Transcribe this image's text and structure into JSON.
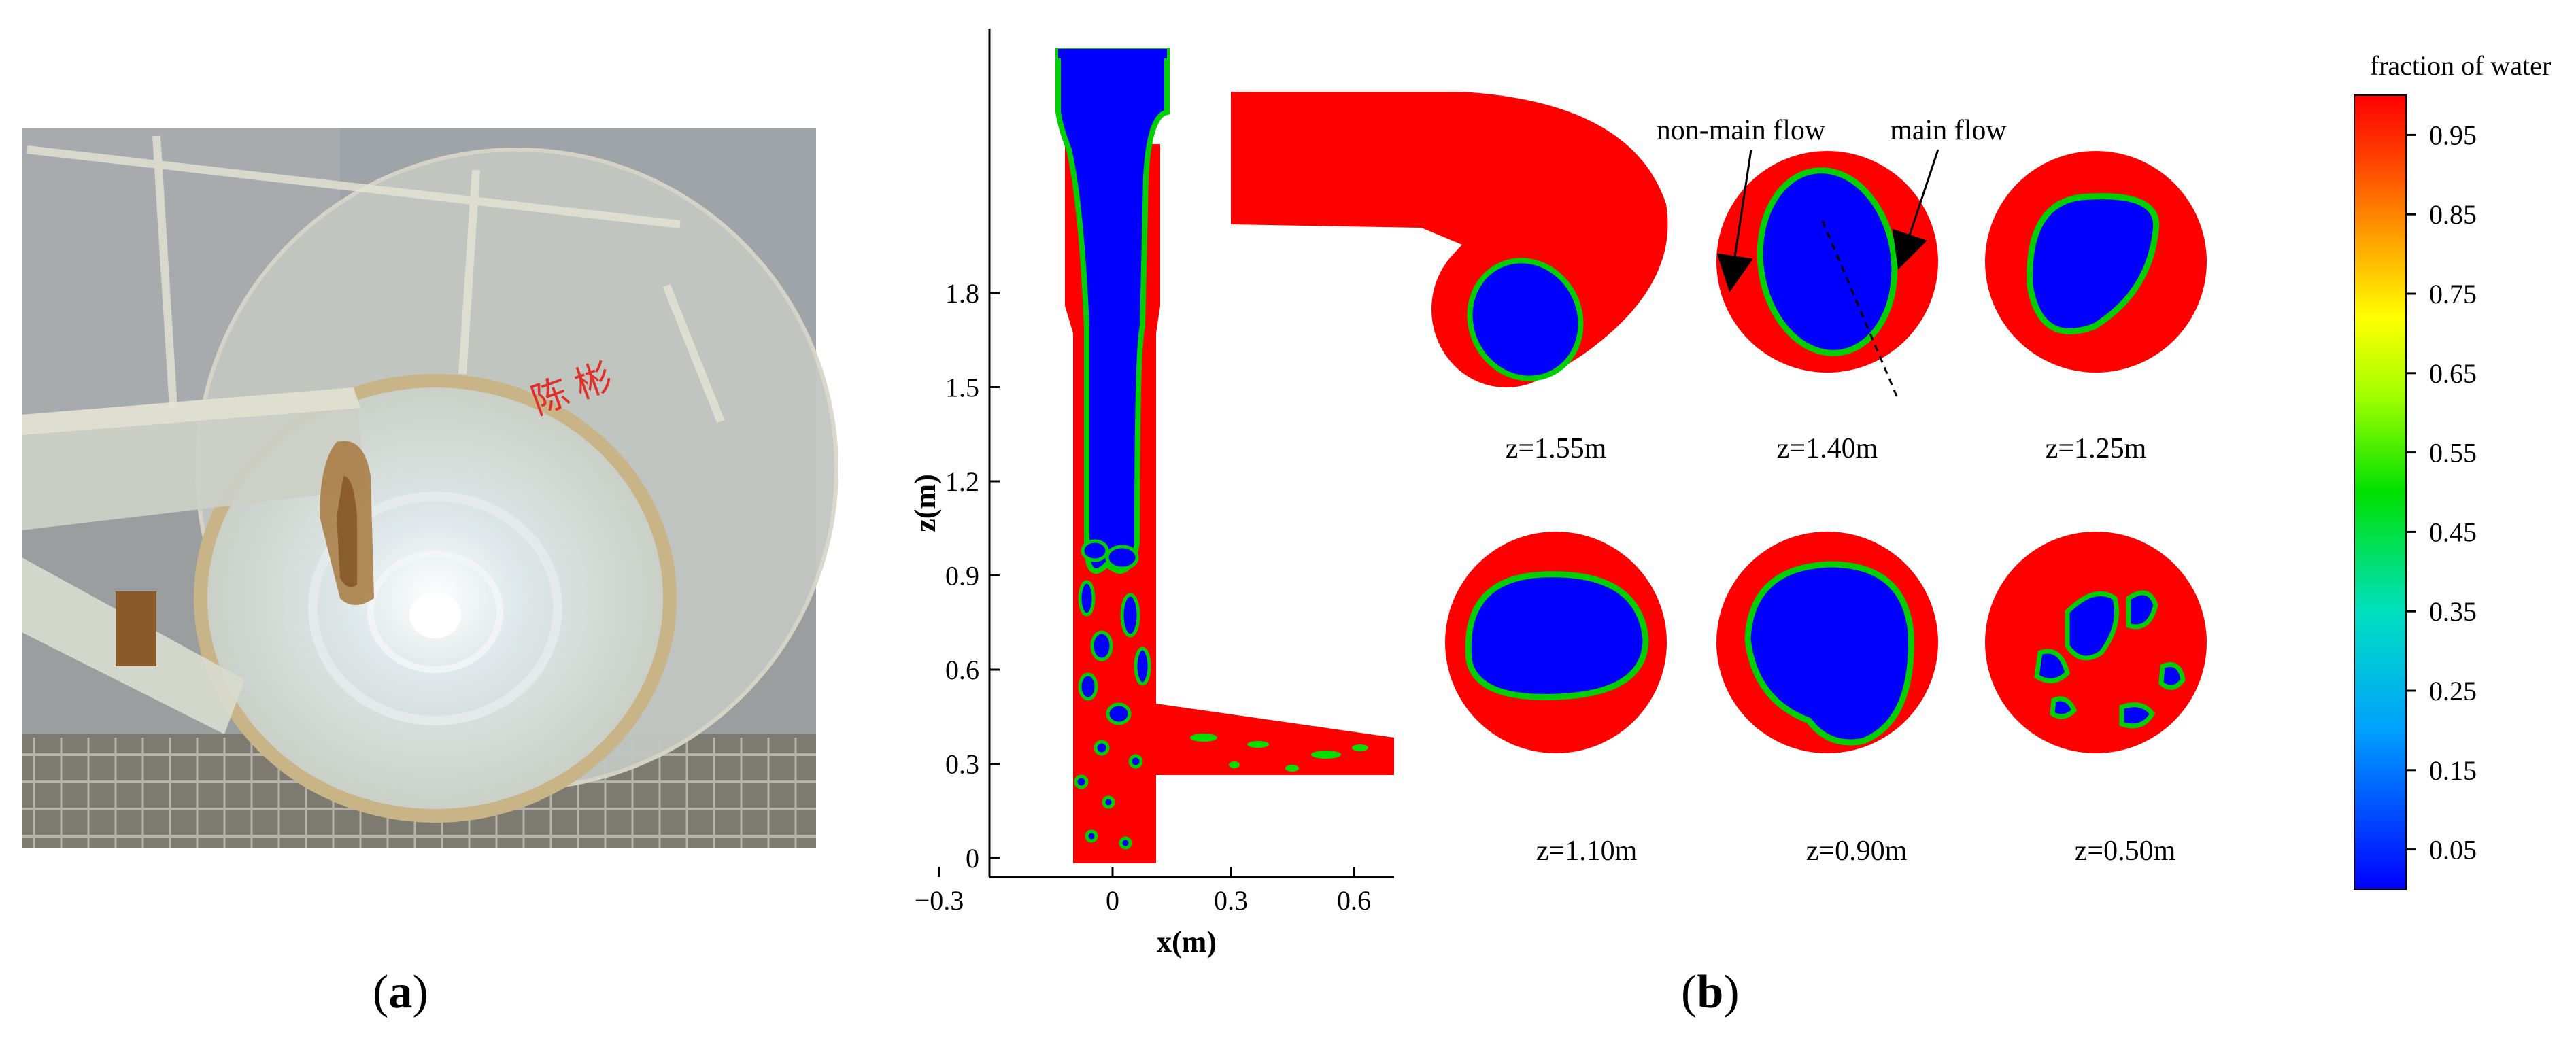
{
  "panel_a": {
    "label": "a",
    "markings": "陈 彬"
  },
  "panel_b": {
    "label": "b",
    "side_plot": {
      "xlabel": "x(m)",
      "ylabel": "z(m)",
      "x_ticks": [
        "−0.3",
        "0",
        "0.3",
        "0.6"
      ],
      "y_ticks": [
        "0",
        "0.3",
        "0.6",
        "0.9",
        "1.2",
        "1.5",
        "1.8"
      ]
    },
    "annotations": {
      "non_main_flow": "non-main flow",
      "main_flow": "main flow"
    },
    "sections": [
      {
        "label": "z=1.55m"
      },
      {
        "label": "z=1.40m"
      },
      {
        "label": "z=1.25m"
      },
      {
        "label": "z=1.10m"
      },
      {
        "label": "z=0.90m"
      },
      {
        "label": "z=0.50m"
      }
    ],
    "colorbar": {
      "title": "fraction of water",
      "ticks": [
        "0.95",
        "0.85",
        "0.75",
        "0.65",
        "0.55",
        "0.45",
        "0.35",
        "0.25",
        "0.15",
        "0.05"
      ]
    }
  },
  "colors": {
    "water": "#ff0000",
    "air": "#0000ff",
    "interface": "#00dd00"
  }
}
